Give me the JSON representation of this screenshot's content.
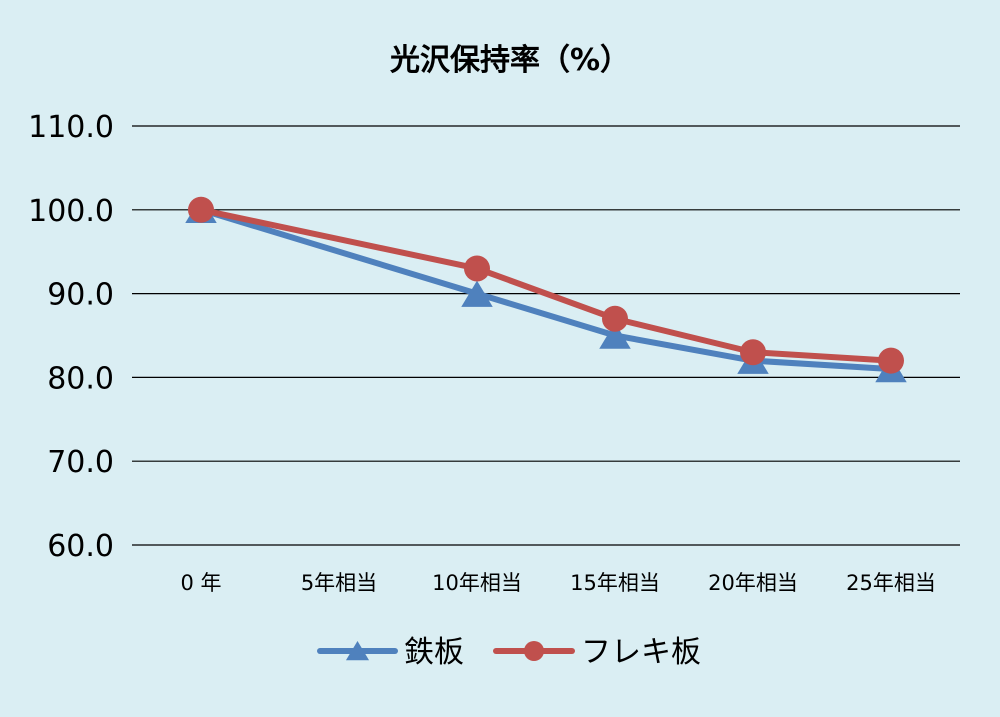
{
  "chart_data": {
    "type": "line",
    "title": "光沢保持率（%）",
    "xlabel": "",
    "ylabel": "",
    "categories": [
      "0 年",
      "5年相当",
      "10年相当",
      "15年相当",
      "20年相当",
      "25年相当"
    ],
    "ylim": [
      60,
      110
    ],
    "yticks": [
      "60.0",
      "70.0",
      "80.0",
      "90.0",
      "100.0",
      "110.0"
    ],
    "grid": true,
    "legend_position": "bottom",
    "series": [
      {
        "name": "鉄板",
        "values": [
          100,
          null,
          90,
          85,
          82,
          81
        ],
        "color": "#4f81bd",
        "marker": "triangle"
      },
      {
        "name": "フレキ板",
        "values": [
          100,
          null,
          93,
          87,
          83,
          82
        ],
        "color": "#c0504d",
        "marker": "circle"
      }
    ]
  },
  "colors": {
    "background": "#daeef3",
    "gridline": "#000000"
  }
}
